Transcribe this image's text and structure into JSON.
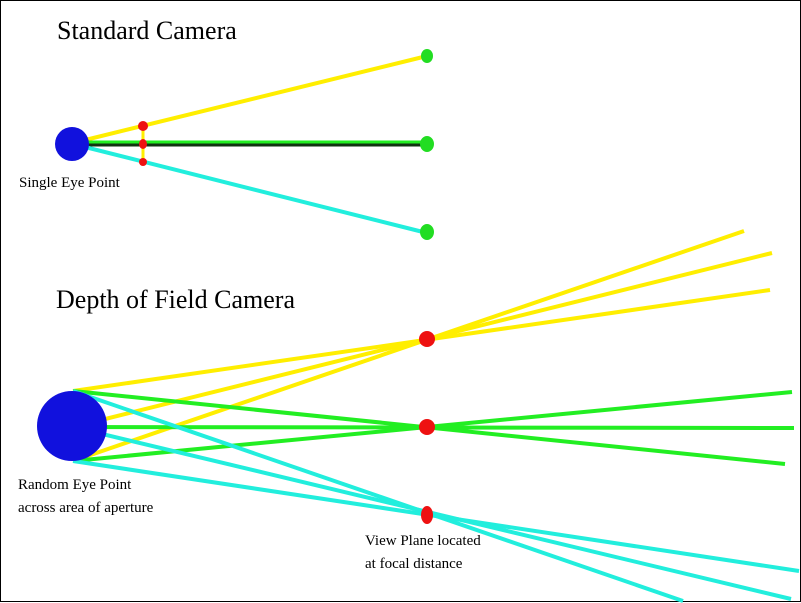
{
  "standard": {
    "title": "Standard Camera",
    "eye_label": "Single Eye Point"
  },
  "dof": {
    "title": "Depth of Field Camera",
    "eye_label_line1": "Random Eye Point",
    "eye_label_line2": "across area of aperture",
    "plane_label_line1": "View Plane located",
    "plane_label_line2": "at focal distance"
  },
  "colors": {
    "yellow": "#ffee00",
    "green": "#22ee22",
    "cyan": "#22eedd",
    "eye": "#1111dd",
    "point_red": "#ee1111",
    "point_green": "#22dd22",
    "line_dark": "#113311"
  }
}
